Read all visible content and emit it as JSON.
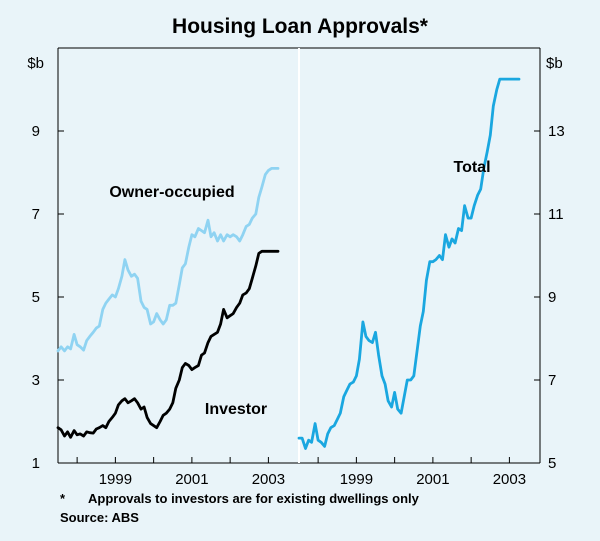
{
  "chart_data": {
    "type": "line",
    "title": "Housing Loan Approvals*",
    "footnote_marker": "*",
    "footnote_text": "Approvals to investors are for existing dwellings only",
    "source": "Source: ABS",
    "panels": [
      {
        "unit_label": "$b",
        "axis_side": "left",
        "ylim": [
          1,
          11
        ],
        "yticks": [
          1,
          3,
          5,
          7,
          9
        ],
        "xlim": [
          1997.5,
          2003.8
        ],
        "xticks": [
          1999,
          2001,
          2003
        ],
        "xtick_labels": [
          "1999",
          "2001",
          "2003"
        ],
        "grid": false,
        "series": [
          {
            "name": "Owner-occupied",
            "color": "#8fd3f2",
            "x": [
              1997.5,
              1997.58,
              1997.67,
              1997.75,
              1997.83,
              1997.92,
              1998.0,
              1998.08,
              1998.17,
              1998.25,
              1998.33,
              1998.42,
              1998.5,
              1998.58,
              1998.67,
              1998.75,
              1998.83,
              1998.92,
              1999.0,
              1999.08,
              1999.17,
              1999.25,
              1999.33,
              1999.42,
              1999.5,
              1999.58,
              1999.67,
              1999.75,
              1999.83,
              1999.92,
              2000.0,
              2000.08,
              2000.17,
              2000.25,
              2000.33,
              2000.42,
              2000.5,
              2000.58,
              2000.67,
              2000.75,
              2000.83,
              2000.92,
              2001.0,
              2001.08,
              2001.17,
              2001.25,
              2001.33,
              2001.42,
              2001.5,
              2001.58,
              2001.67,
              2001.75,
              2001.83,
              2001.92,
              2002.0,
              2002.08,
              2002.17,
              2002.25,
              2002.33,
              2002.42,
              2002.5,
              2002.58,
              2002.67,
              2002.75,
              2002.83,
              2002.92,
              2003.0,
              2003.08,
              2003.17,
              2003.25
            ],
            "values": [
              3.7,
              3.8,
              3.7,
              3.8,
              3.75,
              4.1,
              3.85,
              3.8,
              3.72,
              3.95,
              4.05,
              4.15,
              4.25,
              4.3,
              4.7,
              4.85,
              4.95,
              5.05,
              5.0,
              5.2,
              5.5,
              5.9,
              5.65,
              5.5,
              5.55,
              5.45,
              4.9,
              4.75,
              4.7,
              4.35,
              4.4,
              4.6,
              4.45,
              4.35,
              4.45,
              4.8,
              4.8,
              4.85,
              5.3,
              5.7,
              5.8,
              6.2,
              6.5,
              6.45,
              6.65,
              6.6,
              6.55,
              6.85,
              6.45,
              6.55,
              6.35,
              6.5,
              6.35,
              6.5,
              6.45,
              6.5,
              6.45,
              6.35,
              6.5,
              6.7,
              6.75,
              6.9,
              7.0,
              7.4,
              7.65,
              7.95,
              8.05,
              8.1,
              8.1,
              8.1
            ]
          },
          {
            "name": "Investor",
            "color": "#000000",
            "x": [
              1997.5,
              1997.58,
              1997.67,
              1997.75,
              1997.83,
              1997.92,
              1998.0,
              1998.08,
              1998.17,
              1998.25,
              1998.33,
              1998.42,
              1998.5,
              1998.58,
              1998.67,
              1998.75,
              1998.83,
              1998.92,
              1999.0,
              1999.08,
              1999.17,
              1999.25,
              1999.33,
              1999.42,
              1999.5,
              1999.58,
              1999.67,
              1999.75,
              1999.83,
              1999.92,
              2000.0,
              2000.08,
              2000.17,
              2000.25,
              2000.33,
              2000.42,
              2000.5,
              2000.58,
              2000.67,
              2000.75,
              2000.83,
              2000.92,
              2001.0,
              2001.08,
              2001.17,
              2001.25,
              2001.33,
              2001.42,
              2001.5,
              2001.58,
              2001.67,
              2001.75,
              2001.83,
              2001.92,
              2002.0,
              2002.08,
              2002.17,
              2002.25,
              2002.33,
              2002.42,
              2002.5,
              2002.58,
              2002.67,
              2002.75,
              2002.83,
              2002.92,
              2003.0,
              2003.08,
              2003.17,
              2003.25
            ],
            "values": [
              1.85,
              1.8,
              1.65,
              1.75,
              1.62,
              1.78,
              1.68,
              1.7,
              1.65,
              1.75,
              1.73,
              1.72,
              1.82,
              1.85,
              1.9,
              1.85,
              2.0,
              2.1,
              2.2,
              2.4,
              2.5,
              2.55,
              2.45,
              2.5,
              2.55,
              2.45,
              2.3,
              2.35,
              2.1,
              1.95,
              1.9,
              1.85,
              2.0,
              2.15,
              2.2,
              2.3,
              2.45,
              2.8,
              3.0,
              3.3,
              3.4,
              3.35,
              3.25,
              3.3,
              3.35,
              3.6,
              3.65,
              3.9,
              4.05,
              4.1,
              4.15,
              4.35,
              4.7,
              4.5,
              4.55,
              4.6,
              4.75,
              4.85,
              5.05,
              5.1,
              5.2,
              5.45,
              5.75,
              6.05,
              6.1,
              6.1,
              6.1,
              6.1,
              6.1,
              6.1
            ]
          }
        ],
        "labels": [
          {
            "text": "Owner-occupied",
            "series": "Owner-occupied"
          },
          {
            "text": "Investor",
            "series": "Investor"
          }
        ]
      },
      {
        "unit_label": "$b",
        "axis_side": "right",
        "ylim": [
          5,
          15
        ],
        "yticks": [
          5,
          7,
          9,
          11,
          13
        ],
        "xlim": [
          1997.5,
          2003.8
        ],
        "xticks": [
          1999,
          2001,
          2003
        ],
        "xtick_labels": [
          "1999",
          "2001",
          "2003"
        ],
        "grid": false,
        "series": [
          {
            "name": "Total",
            "color": "#1aa7e0",
            "x": [
              1997.5,
              1997.58,
              1997.67,
              1997.75,
              1997.83,
              1997.92,
              1998.0,
              1998.08,
              1998.17,
              1998.25,
              1998.33,
              1998.42,
              1998.5,
              1998.58,
              1998.67,
              1998.75,
              1998.83,
              1998.92,
              1999.0,
              1999.08,
              1999.17,
              1999.25,
              1999.33,
              1999.42,
              1999.5,
              1999.58,
              1999.67,
              1999.75,
              1999.83,
              1999.92,
              2000.0,
              2000.08,
              2000.17,
              2000.25,
              2000.33,
              2000.42,
              2000.5,
              2000.58,
              2000.67,
              2000.75,
              2000.83,
              2000.92,
              2001.0,
              2001.08,
              2001.17,
              2001.25,
              2001.33,
              2001.42,
              2001.5,
              2001.58,
              2001.67,
              2001.75,
              2001.83,
              2001.92,
              2002.0,
              2002.08,
              2002.17,
              2002.25,
              2002.33,
              2002.42,
              2002.5,
              2002.58,
              2002.67,
              2002.75,
              2002.83,
              2002.92,
              2003.0,
              2003.08,
              2003.17,
              2003.25
            ],
            "values": [
              5.6,
              5.6,
              5.35,
              5.55,
              5.5,
              5.95,
              5.55,
              5.5,
              5.4,
              5.7,
              5.85,
              5.9,
              6.05,
              6.2,
              6.6,
              6.75,
              6.9,
              6.95,
              7.1,
              7.5,
              8.4,
              8.05,
              7.95,
              7.9,
              8.15,
              7.6,
              7.1,
              6.9,
              6.5,
              6.35,
              6.7,
              6.3,
              6.2,
              6.6,
              7.0,
              7.0,
              7.1,
              7.65,
              8.3,
              8.65,
              9.4,
              9.85,
              9.85,
              9.9,
              10.0,
              9.9,
              10.5,
              10.2,
              10.4,
              10.3,
              10.65,
              10.6,
              11.2,
              10.9,
              10.9,
              11.2,
              11.45,
              11.6,
              12.1,
              12.5,
              12.9,
              13.6,
              14.0,
              14.25,
              14.25,
              14.25,
              14.25,
              14.25,
              14.25,
              14.25
            ]
          }
        ],
        "labels": [
          {
            "text": "Total",
            "series": "Total"
          }
        ]
      }
    ]
  }
}
